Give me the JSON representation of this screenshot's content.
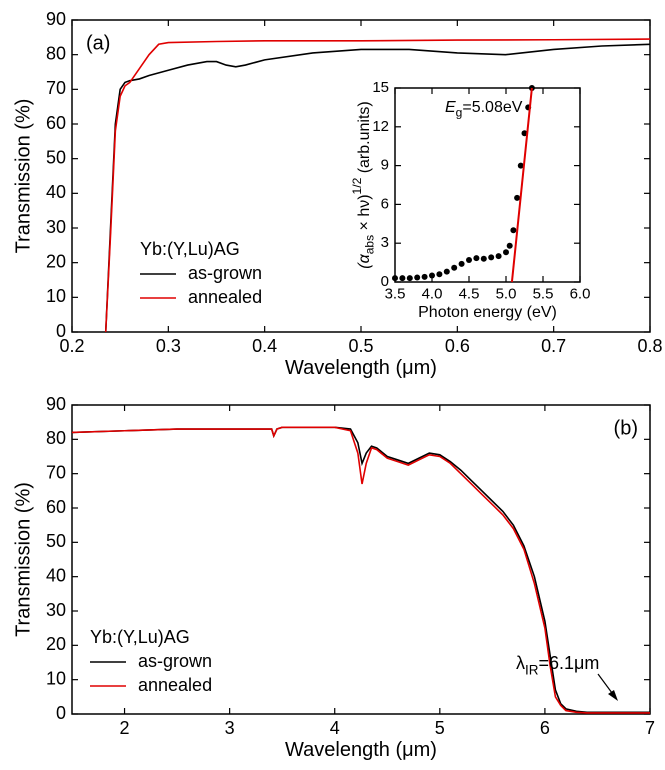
{
  "chart_data": [
    {
      "type": "line",
      "panel_label": "(a)",
      "x_label": "Wavelength (μm)",
      "y_label": "Transmission (%)",
      "xlim": [
        0.2,
        0.8
      ],
      "ylim": [
        0,
        90
      ],
      "xticks": [
        0.2,
        0.3,
        0.4,
        0.5,
        0.6,
        0.7,
        0.8
      ],
      "yticks": [
        0,
        10,
        20,
        30,
        40,
        50,
        60,
        70,
        80,
        90
      ],
      "legend": "lower left",
      "legend_title": "Yb:(Y,Lu)AG",
      "series": [
        {
          "name": "as-grown",
          "color": "#000000",
          "x": [
            0.235,
            0.24,
            0.245,
            0.25,
            0.255,
            0.26,
            0.27,
            0.28,
            0.3,
            0.32,
            0.34,
            0.35,
            0.36,
            0.37,
            0.38,
            0.4,
            0.45,
            0.5,
            0.55,
            0.6,
            0.65,
            0.7,
            0.75,
            0.8
          ],
          "values": [
            0,
            30,
            60,
            70,
            72,
            72.5,
            73,
            74,
            75.5,
            77,
            78,
            78,
            77,
            76.5,
            77,
            78.5,
            80.5,
            81.5,
            81.5,
            80.5,
            80,
            81.5,
            82.5,
            83
          ]
        },
        {
          "name": "annealed",
          "color": "#e00000",
          "x": [
            0.235,
            0.24,
            0.245,
            0.25,
            0.255,
            0.26,
            0.27,
            0.28,
            0.29,
            0.3,
            0.35,
            0.4,
            0.5,
            0.6,
            0.7,
            0.8
          ],
          "values": [
            0,
            28,
            58,
            68,
            71,
            72,
            76,
            80,
            83,
            83.5,
            83.8,
            84,
            84,
            84.2,
            84.3,
            84.5
          ]
        }
      ]
    },
    {
      "type": "scatter",
      "x_label": "Photon energy (eV)",
      "y_label": [
        {
          "text": "(α",
          "style": "italic"
        },
        {
          "text": "abs",
          "style": "sub"
        },
        {
          "text": " × hν)",
          "style": "normal"
        },
        {
          "text": "1/2",
          "style": "sup"
        },
        {
          "text": " (arb.units)",
          "style": "normal"
        }
      ],
      "annotation": [
        {
          "text": "E",
          "style": "italic"
        },
        {
          "text": "g",
          "style": "sub"
        },
        {
          "text": "=5.08eV",
          "style": "normal"
        }
      ],
      "xlim": [
        3.5,
        6.0
      ],
      "ylim": [
        0,
        15
      ],
      "xticks": [
        {
          "value": 3.5,
          "label": "3.5"
        },
        {
          "value": 4,
          "label": "4.0"
        },
        {
          "value": 4.5,
          "label": "4.5"
        },
        {
          "value": 5,
          "label": "5.0"
        },
        {
          "value": 5.5,
          "label": "5.5"
        },
        {
          "value": 6,
          "label": "6.0"
        }
      ],
      "yticks": [
        0,
        3,
        6,
        9,
        12,
        15
      ],
      "series": [
        {
          "color": "#000000",
          "style": "markers",
          "x": [
            3.5,
            3.6,
            3.7,
            3.8,
            3.9,
            4.0,
            4.1,
            4.2,
            4.3,
            4.4,
            4.5,
            4.6,
            4.7,
            4.8,
            4.9,
            5.0,
            5.05,
            5.1,
            5.15,
            5.2,
            5.25,
            5.3,
            5.35
          ],
          "values": [
            0.3,
            0.3,
            0.3,
            0.35,
            0.4,
            0.5,
            0.6,
            0.8,
            1.1,
            1.4,
            1.7,
            1.85,
            1.8,
            1.9,
            2.0,
            2.3,
            2.8,
            4.0,
            6.5,
            9.0,
            11.5,
            13.5,
            15
          ]
        },
        {
          "color": "#e00000",
          "style": "line",
          "x": [
            5.08,
            5.35
          ],
          "values": [
            0,
            15
          ]
        }
      ]
    },
    {
      "type": "line",
      "panel_label": "(b)",
      "x_label": "Wavelength (μm)",
      "y_label": "Transmission (%)",
      "annotation": [
        {
          "text": "λ",
          "style": "normal"
        },
        {
          "text": "IR",
          "style": "sub"
        },
        {
          "text": "=6.1μm",
          "style": "normal"
        }
      ],
      "xlim": [
        1.5,
        7
      ],
      "ylim": [
        0,
        90
      ],
      "xticks": [
        2,
        3,
        4,
        5,
        6,
        7
      ],
      "yticks": [
        0,
        10,
        20,
        30,
        40,
        50,
        60,
        70,
        80,
        90
      ],
      "legend": "lower left",
      "legend_title": "Yb:(Y,Lu)AG",
      "series": [
        {
          "name": "as-grown",
          "color": "#000000",
          "x": [
            1.5,
            2,
            2.5,
            3,
            3.4,
            3.42,
            3.45,
            3.5,
            4,
            4.15,
            4.22,
            4.26,
            4.3,
            4.35,
            4.4,
            4.5,
            4.6,
            4.7,
            4.8,
            4.9,
            5.0,
            5.1,
            5.2,
            5.3,
            5.4,
            5.5,
            5.6,
            5.7,
            5.8,
            5.9,
            6.0,
            6.05,
            6.1,
            6.15,
            6.2,
            6.3,
            6.4,
            7
          ],
          "values": [
            82,
            82.5,
            83,
            83,
            83,
            81,
            83,
            83.5,
            83.5,
            83,
            79,
            73,
            76,
            78,
            77.5,
            75,
            74,
            73,
            74.5,
            76,
            75.5,
            73.5,
            71,
            68,
            65,
            62,
            59,
            55,
            49,
            40,
            27,
            17,
            7,
            3,
            1.5,
            0.8,
            0.5,
            0.5
          ]
        },
        {
          "name": "annealed",
          "color": "#e00000",
          "x": [
            1.5,
            2,
            2.5,
            3,
            3.4,
            3.42,
            3.45,
            3.5,
            4,
            4.15,
            4.22,
            4.26,
            4.3,
            4.35,
            4.4,
            4.5,
            4.6,
            4.7,
            4.8,
            4.9,
            5.0,
            5.1,
            5.2,
            5.3,
            5.4,
            5.5,
            5.6,
            5.7,
            5.8,
            5.9,
            6.0,
            6.05,
            6.1,
            6.15,
            6.2,
            6.3,
            6.4,
            7
          ],
          "values": [
            82,
            82.5,
            83,
            83,
            83,
            81,
            83,
            83.5,
            83.5,
            82.5,
            76,
            67,
            73,
            77.5,
            77,
            74.5,
            73.5,
            72.5,
            74,
            75.5,
            75,
            73,
            70,
            67,
            64,
            61,
            58,
            54,
            48,
            38,
            25,
            14,
            5,
            2.5,
            1,
            0.5,
            0.3,
            0.3
          ]
        }
      ]
    }
  ]
}
